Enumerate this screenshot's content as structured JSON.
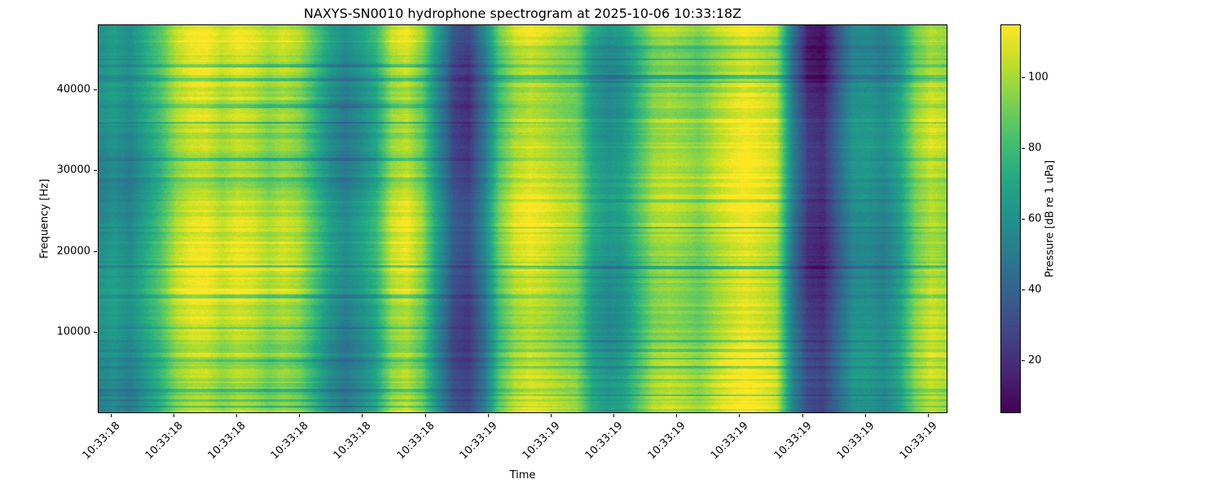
{
  "figure": {
    "background": "#ffffff",
    "text_color": "#000000"
  },
  "chart_data": {
    "type": "heatmap",
    "title": "NAXYS-SN0010 hydrophone spectrogram at 2025-10-06 10:33:18Z",
    "xlabel": "Time",
    "ylabel": "Frequency [Hz]",
    "x_tick_labels": [
      "10:33:18",
      "10:33:18",
      "10:33:18",
      "10:33:18",
      "10:33:18",
      "10:33:18",
      "10:33:19",
      "10:33:19",
      "10:33:19",
      "10:33:19",
      "10:33:19",
      "10:33:19",
      "10:33:19",
      "10:33:19"
    ],
    "y_tick_values": [
      10000,
      20000,
      30000,
      40000
    ],
    "ylim": [
      0,
      48000
    ],
    "grid": false,
    "legend": "none",
    "colorbar": {
      "label": "Pressure [dB re 1 uPa]",
      "tick_values": [
        20,
        40,
        60,
        80,
        100
      ],
      "vmin": 5,
      "vmax": 115,
      "position": "right"
    },
    "colormap": {
      "name": "viridis",
      "stops": [
        {
          "t": 0.0,
          "color": "#440154"
        },
        {
          "t": 0.1,
          "color": "#482475"
        },
        {
          "t": 0.2,
          "color": "#414487"
        },
        {
          "t": 0.3,
          "color": "#355f8d"
        },
        {
          "t": 0.4,
          "color": "#2a788e"
        },
        {
          "t": 0.5,
          "color": "#21918c"
        },
        {
          "t": 0.6,
          "color": "#22a884"
        },
        {
          "t": 0.7,
          "color": "#44bf70"
        },
        {
          "t": 0.8,
          "color": "#7ad151"
        },
        {
          "t": 0.9,
          "color": "#bddf26"
        },
        {
          "t": 1.0,
          "color": "#fde725"
        }
      ]
    },
    "time_profile_db": [
      55,
      58,
      50,
      62,
      75,
      95,
      105,
      108,
      102,
      110,
      108,
      100,
      105,
      98,
      80,
      62,
      52,
      60,
      72,
      100,
      108,
      95,
      65,
      40,
      35,
      55,
      90,
      105,
      108,
      102,
      95,
      90,
      65,
      58,
      62,
      80,
      98,
      102,
      98,
      92,
      100,
      105,
      108,
      102,
      95,
      45,
      22,
      20,
      40,
      60,
      62,
      58,
      70,
      95,
      105,
      98
    ],
    "texture": {
      "seed": 42,
      "striation_amp": 14,
      "cell_noise_amp": 3
    }
  }
}
